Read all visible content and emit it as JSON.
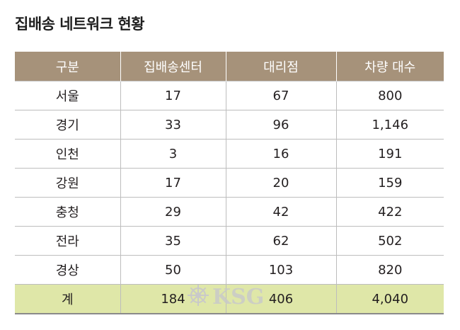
{
  "title": "집배송 네트워크 현황",
  "table": {
    "headers": [
      "구분",
      "집배송센터",
      "대리점",
      "차량 대수"
    ],
    "rows": [
      [
        "서울",
        "17",
        "67",
        "800"
      ],
      [
        "경기",
        "33",
        "96",
        "1,146"
      ],
      [
        "인천",
        "3",
        "16",
        "191"
      ],
      [
        "강원",
        "17",
        "20",
        "159"
      ],
      [
        "충청",
        "29",
        "42",
        "422"
      ],
      [
        "전라",
        "35",
        "62",
        "502"
      ],
      [
        "경상",
        "50",
        "103",
        "820"
      ]
    ],
    "total": [
      "계",
      "184",
      "406",
      "4,040"
    ]
  },
  "watermark": {
    "text": "KSG"
  },
  "colors": {
    "header_bg": "#a6927a",
    "total_bg": "#dfe7a8",
    "watermark": "#c9c9c9"
  }
}
